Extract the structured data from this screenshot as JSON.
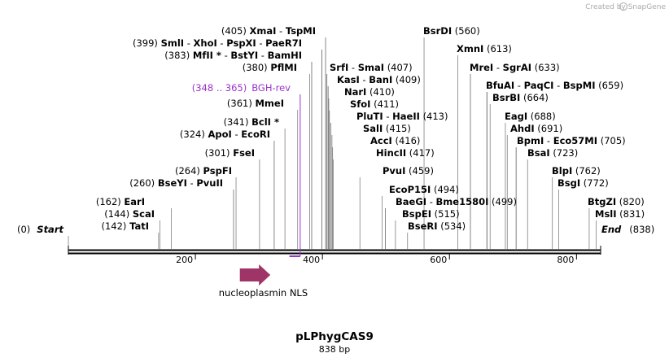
{
  "credit": "Created by SnapGene",
  "map": {
    "title": "pLPhygCAS9",
    "length_label": "838 bp",
    "length": 838,
    "start_label": "Start",
    "end_label": "End",
    "start_pos": "(0)",
    "end_pos": "(838)",
    "ticks": [
      {
        "value": 200,
        "label": "200"
      },
      {
        "value": 400,
        "label": "400"
      },
      {
        "value": 600,
        "label": "600"
      },
      {
        "value": 800,
        "label": "800"
      }
    ]
  },
  "feature": {
    "name": "nucleoplasmin NLS",
    "start": 270,
    "end": 318,
    "color": "#9e3566"
  },
  "primer": {
    "name": "BGH-rev",
    "range": "(348 .. 365)",
    "start": 348,
    "end": 365,
    "color": "#9933cc"
  },
  "left_sites": [
    {
      "pos": "(405)",
      "names": [
        {
          "n": "XmaI",
          "star": false
        },
        {
          "n": "TspMI",
          "star": false
        }
      ],
      "cuts": [
        405,
        405
      ]
    },
    {
      "pos": "(399)",
      "names": [
        {
          "n": "SmlI",
          "star": false
        },
        {
          "n": "XhoI",
          "star": false
        },
        {
          "n": "PspXI",
          "star": false
        },
        {
          "n": "PaeR7I",
          "star": false
        }
      ],
      "cuts": [
        399,
        399,
        399,
        399
      ]
    },
    {
      "pos": "(383)",
      "names": [
        {
          "n": "MfII",
          "star": true
        },
        {
          "n": "BstYI",
          "star": false
        },
        {
          "n": "BamHI",
          "star": false
        }
      ],
      "cuts": [
        383,
        383,
        383
      ]
    },
    {
      "pos": "(380)",
      "names": [
        {
          "n": "PflMI",
          "star": false
        }
      ],
      "cuts": [
        380
      ]
    },
    {
      "pos": "(361)",
      "names": [
        {
          "n": "MmeI",
          "star": false
        }
      ],
      "cuts": [
        361
      ]
    },
    {
      "pos": "(341)",
      "names": [
        {
          "n": "BclI",
          "star": true
        }
      ],
      "cuts": [
        341
      ]
    },
    {
      "pos": "(324)",
      "names": [
        {
          "n": "ApoI",
          "star": false
        },
        {
          "n": "EcoRI",
          "star": false
        }
      ],
      "cuts": [
        324,
        324
      ]
    },
    {
      "pos": "(301)",
      "names": [
        {
          "n": "FseI",
          "star": false
        }
      ],
      "cuts": [
        301
      ]
    },
    {
      "pos": "(264)",
      "names": [
        {
          "n": "PspFI",
          "star": false
        }
      ],
      "cuts": [
        264
      ]
    },
    {
      "pos": "(260)",
      "names": [
        {
          "n": "BseYI",
          "star": false
        },
        {
          "n": "PvuII",
          "star": false
        }
      ],
      "cuts": [
        260,
        260
      ]
    },
    {
      "pos": "(162)",
      "names": [
        {
          "n": "EarI",
          "star": false
        }
      ],
      "cuts": [
        162
      ]
    },
    {
      "pos": "(144)",
      "names": [
        {
          "n": "ScaI",
          "star": false
        }
      ],
      "cuts": [
        144
      ]
    },
    {
      "pos": "(142)",
      "names": [
        {
          "n": "TatI",
          "star": false
        }
      ],
      "cuts": [
        142
      ]
    }
  ],
  "right_sites": [
    {
      "pos": "(560)",
      "names": [
        {
          "n": "BsrDI",
          "star": false
        }
      ],
      "cuts": [
        560
      ]
    },
    {
      "pos": "(613)",
      "names": [
        {
          "n": "XmnI",
          "star": false
        }
      ],
      "cuts": [
        613
      ]
    },
    {
      "pos": "(633)",
      "names": [
        {
          "n": "MreI",
          "star": false
        },
        {
          "n": "SgrAI",
          "star": false
        }
      ],
      "cuts": [
        633,
        633
      ]
    },
    {
      "pos": "(407)",
      "names": [
        {
          "n": "SrfI",
          "star": false
        },
        {
          "n": "SmaI",
          "star": false
        }
      ],
      "cuts": [
        407,
        407
      ]
    },
    {
      "pos": "(659)",
      "names": [
        {
          "n": "BfuAI",
          "star": false
        },
        {
          "n": "PaqCI",
          "star": false
        },
        {
          "n": "BspMI",
          "star": false
        }
      ],
      "cuts": [
        659,
        659,
        659
      ]
    },
    {
      "pos": "(409)",
      "names": [
        {
          "n": "KasI",
          "star": false
        },
        {
          "n": "BanI",
          "star": false
        }
      ],
      "cuts": [
        409,
        409
      ]
    },
    {
      "pos": "(410)",
      "names": [
        {
          "n": "NarI",
          "star": false
        }
      ],
      "cuts": [
        410
      ]
    },
    {
      "pos": "(664)",
      "names": [
        {
          "n": "BsrBI",
          "star": false
        }
      ],
      "cuts": [
        664
      ]
    },
    {
      "pos": "(411)",
      "names": [
        {
          "n": "SfoI",
          "star": false
        }
      ],
      "cuts": [
        411
      ]
    },
    {
      "pos": "(413)",
      "names": [
        {
          "n": "PluTI",
          "star": false
        },
        {
          "n": "HaeII",
          "star": false
        }
      ],
      "cuts": [
        413,
        413
      ]
    },
    {
      "pos": "(688)",
      "names": [
        {
          "n": "EagI",
          "star": false
        }
      ],
      "cuts": [
        688
      ]
    },
    {
      "pos": "(415)",
      "names": [
        {
          "n": "SalI",
          "star": false
        }
      ],
      "cuts": [
        415
      ]
    },
    {
      "pos": "(691)",
      "names": [
        {
          "n": "AhdI",
          "star": false
        }
      ],
      "cuts": [
        691
      ]
    },
    {
      "pos": "(416)",
      "names": [
        {
          "n": "AccI",
          "star": false
        }
      ],
      "cuts": [
        416
      ]
    },
    {
      "pos": "(705)",
      "names": [
        {
          "n": "BpmI",
          "star": false
        },
        {
          "n": "Eco57MI",
          "star": false
        }
      ],
      "cuts": [
        705,
        705
      ]
    },
    {
      "pos": "(417)",
      "names": [
        {
          "n": "HincII",
          "star": false
        }
      ],
      "cuts": [
        417
      ]
    },
    {
      "pos": "(723)",
      "names": [
        {
          "n": "BsaI",
          "star": false
        }
      ],
      "cuts": [
        723
      ]
    },
    {
      "pos": "(459)",
      "names": [
        {
          "n": "PvuI",
          "star": false
        }
      ],
      "cuts": [
        459
      ]
    },
    {
      "pos": "(762)",
      "names": [
        {
          "n": "BlpI",
          "star": false
        }
      ],
      "cuts": [
        762
      ]
    },
    {
      "pos": "(494)",
      "names": [
        {
          "n": "EcoP15I",
          "star": false
        }
      ],
      "cuts": [
        494
      ]
    },
    {
      "pos": "(772)",
      "names": [
        {
          "n": "BsgI",
          "star": false
        }
      ],
      "cuts": [
        772
      ]
    },
    {
      "pos": "(499)",
      "names": [
        {
          "n": "BaeGI",
          "star": false
        },
        {
          "n": "Bme1580I",
          "star": false
        }
      ],
      "cuts": [
        499,
        499
      ]
    },
    {
      "pos": "(515)",
      "names": [
        {
          "n": "BspEI",
          "star": false
        }
      ],
      "cuts": [
        515
      ]
    },
    {
      "pos": "(820)",
      "names": [
        {
          "n": "BtgZI",
          "star": false
        }
      ],
      "cuts": [
        820
      ]
    },
    {
      "pos": "(534)",
      "names": [
        {
          "n": "BseRI",
          "star": false
        }
      ],
      "cuts": [
        534
      ]
    },
    {
      "pos": "(831)",
      "names": [
        {
          "n": "MslI",
          "star": false
        }
      ],
      "cuts": [
        831
      ]
    }
  ]
}
